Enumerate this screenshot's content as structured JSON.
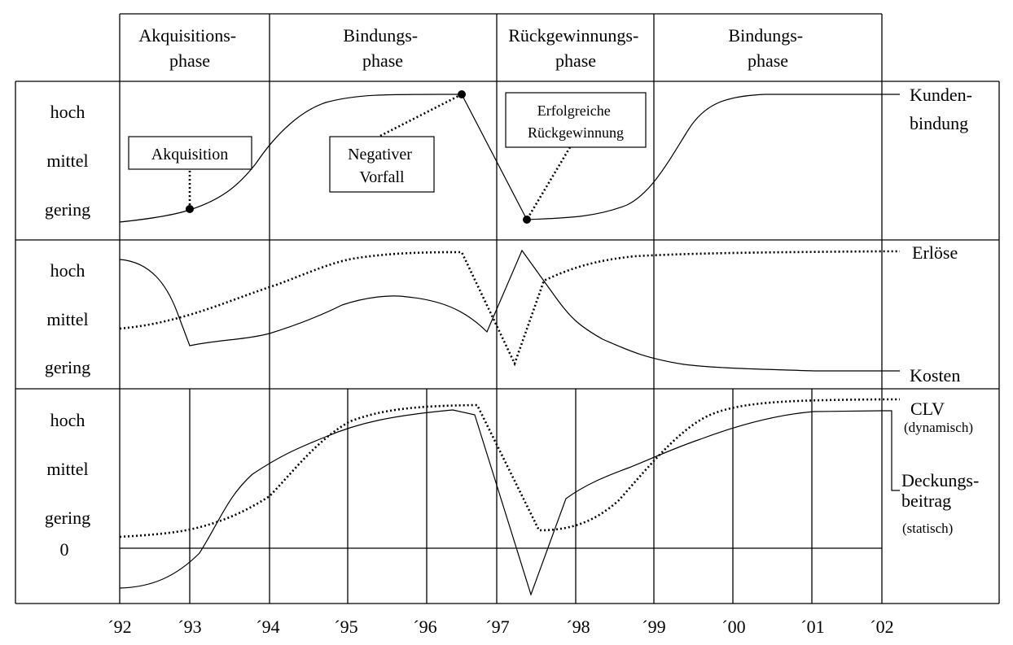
{
  "phases": [
    "Akquisitions-\nphase",
    "Bindungs-\nphase",
    "Rückgewinnungs-\nphase",
    "Bindungs-\nphase"
  ],
  "level_labels": {
    "band1": [
      "hoch",
      "mittel",
      "gering"
    ],
    "band2": [
      "hoch",
      "mittel",
      "gering"
    ],
    "band3": [
      "hoch",
      "mittel",
      "gering",
      "0"
    ]
  },
  "callouts": {
    "akquisition": "Akquisition",
    "negativer_vorfall": "Negativer\nVorfall",
    "rueckgewinnung": "Erfolgreiche\nRückgewinnung"
  },
  "series_labels": {
    "kundenbindung": "Kunden-\nbindung",
    "erloese": "Erlöse",
    "kosten": "Kosten",
    "clv": "CLV",
    "clv_note": "(dynamisch)",
    "deckungsbeitrag": "Deckungs-\nbeitrag",
    "db_note": "(statisch)"
  },
  "years": [
    "´92",
    "´93",
    "´94",
    "´95",
    "´96",
    "´97",
    "´98",
    "´99",
    "´00",
    "´01",
    "´02"
  ]
}
